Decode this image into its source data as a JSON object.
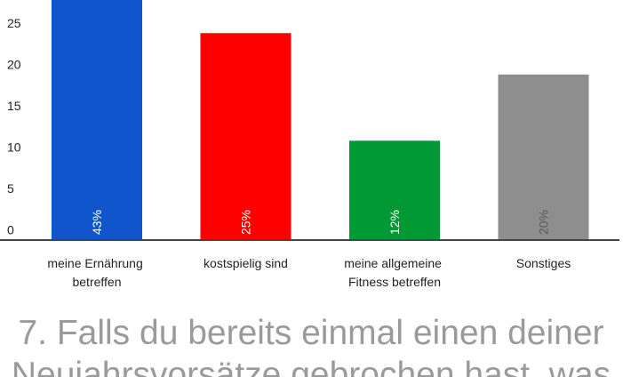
{
  "chart_data": {
    "type": "bar",
    "categories": [
      "meine Ernährung betreffen",
      "kostspielig sind",
      "meine allgemeine Fitness betreffen",
      "Sonstiges"
    ],
    "values": [
      43,
      25,
      12,
      20
    ],
    "value_labels": [
      "43%",
      "25%",
      "12%",
      "20%"
    ],
    "colors": [
      "#1155cc",
      "#ff0000",
      "#009933",
      "#8e8e8e"
    ],
    "value_label_colors": [
      "#ffffff",
      "#ffffff",
      "#ffffff",
      "#5a5a5a"
    ],
    "ylim": [
      0,
      29
    ],
    "yticks": [
      0,
      5,
      10,
      15,
      20,
      25
    ],
    "grid": false
  },
  "caption": [
    "7. Falls du bereits einmal einen deiner",
    "Neujahrsvorsätze gebrochen hast, was"
  ]
}
